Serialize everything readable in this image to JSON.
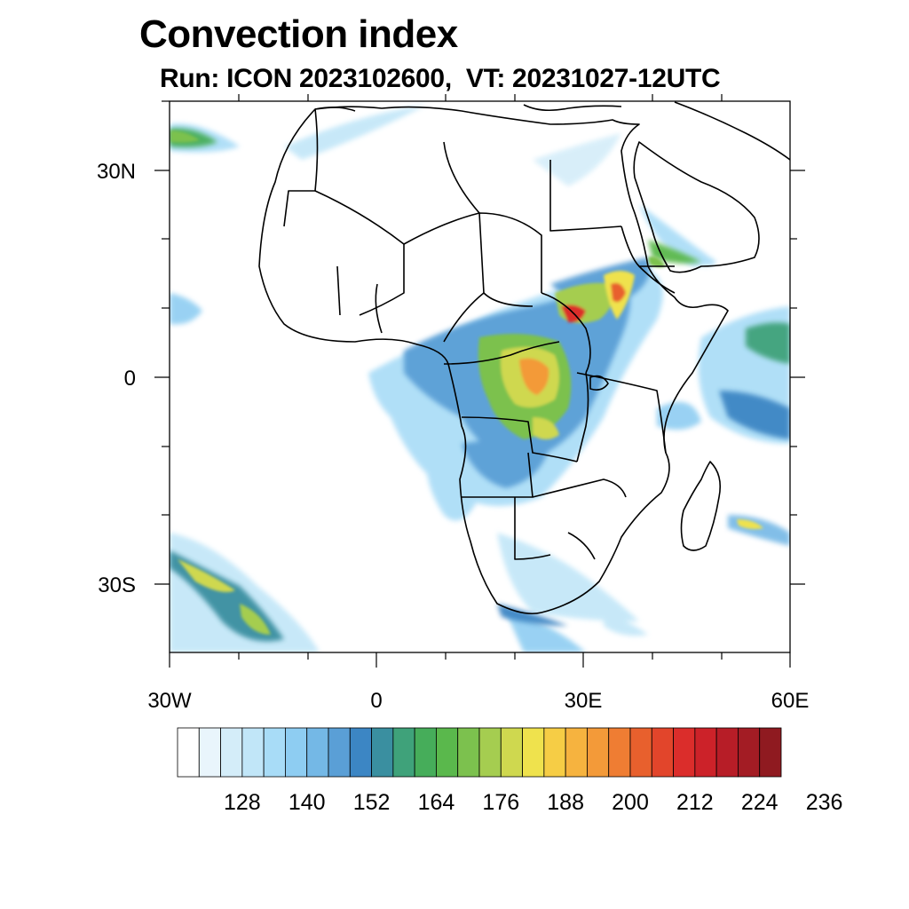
{
  "title": "Convection index",
  "subtitle": "Run: ICON 2023102600,  VT: 20231027-12UTC",
  "map": {
    "lon_range": [
      -30,
      60
    ],
    "lat_range": [
      -40,
      40
    ],
    "lon_ticks": [
      "30W",
      "0",
      "30E",
      "60E"
    ],
    "lat_ticks": [
      "30N",
      "0",
      "30S"
    ]
  },
  "colorbar": {
    "levels": [
      128,
      140,
      152,
      164,
      176,
      188,
      200,
      212,
      224,
      236
    ],
    "labels": [
      "128",
      "140",
      "152",
      "164",
      "176",
      "188",
      "200",
      "212",
      "224",
      "236"
    ],
    "colors": [
      "#ffffff",
      "#e9f5fc",
      "#d4edf9",
      "#c1e6f8",
      "#a8dcf7",
      "#8ecdf2",
      "#74b8e6",
      "#5a9fd6",
      "#3c86c4",
      "#3a8fa0",
      "#3fa27a",
      "#46ad5a",
      "#5ab84c",
      "#7cc14e",
      "#a5cd50",
      "#cfd84f",
      "#efe24d",
      "#f6cd45",
      "#f6b33f",
      "#f39a39",
      "#ef7d33",
      "#e8602d",
      "#e2452b",
      "#db2d2b",
      "#cc2229",
      "#b71d27",
      "#a31c24",
      "#8f1a20"
    ]
  }
}
